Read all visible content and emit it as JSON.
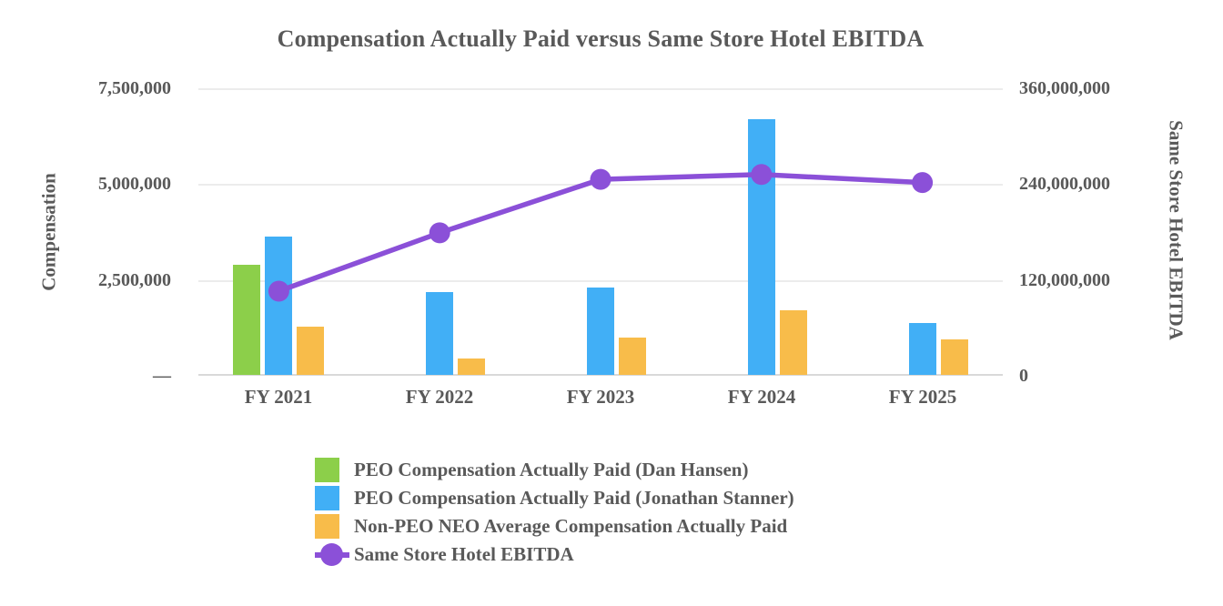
{
  "chart_data": {
    "type": "combo (grouped bar + line)",
    "title": "Compensation Actually Paid versus Same Store Hotel EBITDA",
    "categories": [
      "FY 2021",
      "FY 2022",
      "FY 2023",
      "FY 2024",
      "FY 2025"
    ],
    "bar_series": [
      {
        "name": "PEO Compensation Actually Paid (Dan Hansen)",
        "color": "#8CCF4A",
        "axis": "left",
        "values": [
          2880000,
          0,
          0,
          0,
          0
        ]
      },
      {
        "name": "PEO Compensation Actually Paid (Jonathan Stanner)",
        "color": "#41AFF6",
        "axis": "left",
        "values": [
          3600000,
          2170000,
          2280000,
          6670000,
          1360000
        ]
      },
      {
        "name": "Non-PEO NEO Average Compensation Actually Paid",
        "color": "#F8BC4A",
        "axis": "left",
        "values": [
          1260000,
          420000,
          970000,
          1680000,
          920000
        ]
      }
    ],
    "line_series": [
      {
        "name": "Same Store Hotel EBITDA",
        "color": "#8B50D8",
        "axis": "right",
        "values": [
          106000000,
          179000000,
          246000000,
          252000000,
          242000000
        ]
      }
    ],
    "left_axis": {
      "title": "Compensation",
      "min": 0,
      "max": 7500000,
      "ticks_top_to_bottom": [
        "7,500,000",
        "5,000,000",
        "2,500,000",
        "—"
      ]
    },
    "right_axis": {
      "title": "Same Store Hotel EBITDA",
      "min": 0,
      "max": 360000000,
      "ticks_top_to_bottom": [
        "360,000,000",
        "240,000,000",
        "120,000,000",
        "0"
      ]
    },
    "grid": "horizontal gridlines on",
    "legend_position": "bottom-left"
  },
  "colors": {
    "text": "#595959",
    "gridline": "#ECECEC",
    "axis_line": "#D9D9D9",
    "background": "#FFFFFF",
    "green_bar": "#8CCF4A",
    "blue_bar": "#41AFF6",
    "orange_bar": "#F8BC4A",
    "purple_line": "#8B50D8"
  }
}
